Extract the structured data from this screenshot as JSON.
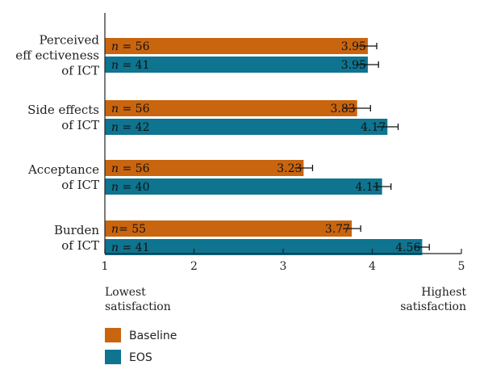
{
  "chart_data": {
    "type": "bar",
    "orientation": "horizontal",
    "xlim": [
      1,
      5
    ],
    "xticks": [
      "1",
      "2",
      "3",
      "4",
      "5"
    ],
    "axis_notes": {
      "low": [
        "Lowest",
        "satisfaction"
      ],
      "high": [
        "Highest",
        "satisfaction"
      ]
    },
    "categories": [
      {
        "label_lines": [
          "Perceived",
          "eff ectiveness",
          "of ICT"
        ]
      },
      {
        "label_lines": [
          "Side effects",
          "of ICT"
        ]
      },
      {
        "label_lines": [
          "Acceptance",
          "of ICT"
        ]
      },
      {
        "label_lines": [
          "Burden",
          "of ICT"
        ]
      }
    ],
    "series": [
      {
        "name": "Baseline",
        "color": "#c9650f",
        "values": [
          3.95,
          3.83,
          3.23,
          3.77
        ],
        "value_labels": [
          "3.95",
          "3.83",
          "3.23",
          "3.77"
        ],
        "errors": [
          0.1,
          0.15,
          0.1,
          0.1
        ],
        "n_labels": [
          {
            "prefix": "n",
            "text": " = 56"
          },
          {
            "prefix": "n",
            "text": " = 56"
          },
          {
            "prefix": "n",
            "text": " = 56"
          },
          {
            "prefix": "n",
            "text": "= 55"
          }
        ]
      },
      {
        "name": "EOS",
        "color": "#0e7490",
        "values": [
          3.95,
          4.17,
          4.11,
          4.56
        ],
        "value_labels": [
          "3.95",
          "4.17",
          "4.11",
          "4.56"
        ],
        "errors": [
          0.12,
          0.12,
          0.1,
          0.08
        ],
        "n_labels": [
          {
            "prefix": "n",
            "text": " = 41"
          },
          {
            "prefix": "n",
            "text": " = 42"
          },
          {
            "prefix": "n",
            "text": " = 40"
          },
          {
            "prefix": "n",
            "text": " = 41"
          }
        ]
      }
    ],
    "legend_position": "bottom-left"
  }
}
